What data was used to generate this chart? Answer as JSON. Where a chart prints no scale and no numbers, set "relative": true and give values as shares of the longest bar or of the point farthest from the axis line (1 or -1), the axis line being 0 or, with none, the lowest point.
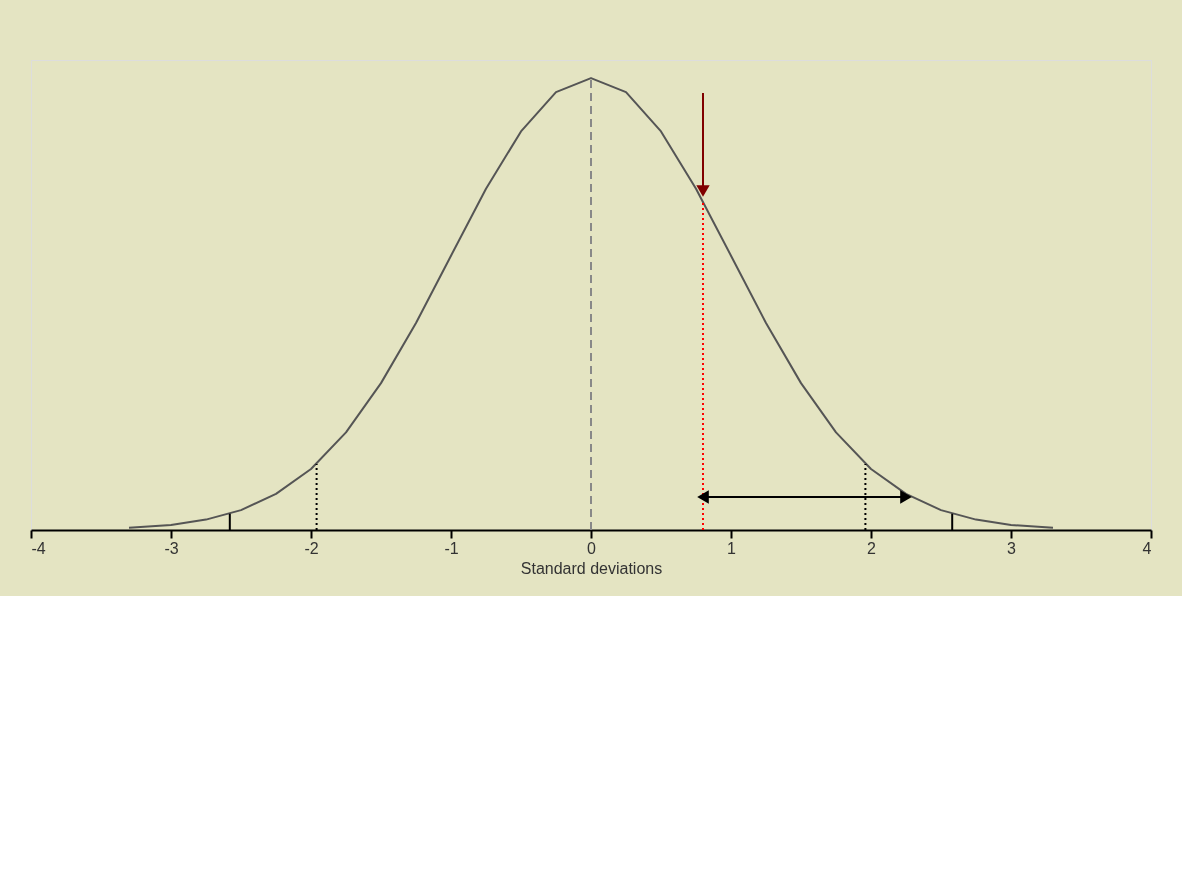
{
  "chart_data": {
    "type": "line",
    "relative": true,
    "xlabel": "Standard deviations",
    "xlim": [
      -4,
      4
    ],
    "xticks": [
      -4,
      -3,
      -2,
      -1,
      0,
      1,
      2,
      3,
      4
    ],
    "grid": false,
    "marker": "none",
    "series": [
      {
        "color": "#555555",
        "x": [
          -3.3,
          -3,
          -2.75,
          -2.5,
          -2.25,
          -2,
          -1.75,
          -1.5,
          -1.25,
          -1,
          -0.75,
          -0.5,
          -0.25,
          0,
          0.25,
          0.5,
          0.75,
          1,
          1.25,
          1.5,
          1.75,
          2,
          2.25,
          2.5,
          2.75,
          3,
          3.3
        ],
        "values": [
          0.005,
          0.011,
          0.023,
          0.044,
          0.08,
          0.135,
          0.216,
          0.325,
          0.458,
          0.607,
          0.755,
          0.882,
          0.969,
          1,
          0.969,
          0.882,
          0.755,
          0.607,
          0.458,
          0.325,
          0.216,
          0.135,
          0.08,
          0.044,
          0.023,
          0.011,
          0.005
        ]
      },
      {
        "type": "line",
        "color": "#888888",
        "line_style": "dashed",
        "x": [
          0,
          0
        ],
        "values": [
          0,
          1
        ]
      },
      {
        "type": "line",
        "color": "#000000",
        "line_style": "dotted",
        "x": [
          -1.96,
          -1.96
        ],
        "values": [
          0,
          0.146
        ]
      },
      {
        "type": "line",
        "color": "#000000",
        "line_style": "dotted",
        "x": [
          1.96,
          1.96
        ],
        "values": [
          0,
          0.146
        ]
      },
      {
        "type": "line",
        "color": "#000000",
        "line_style": "solid",
        "x": [
          -2.58,
          -2.58
        ],
        "values": [
          0,
          0.036
        ]
      },
      {
        "type": "line",
        "color": "#000000",
        "line_style": "solid",
        "x": [
          2.58,
          2.58
        ],
        "values": [
          0,
          0.036
        ]
      },
      {
        "type": "line",
        "color": "#ff0000",
        "line_style": "dotted",
        "x": [
          0.8,
          0.8
        ],
        "values": [
          0,
          0.726
        ]
      },
      {
        "type": "line",
        "color": "#800000",
        "marker": "triangle",
        "x": [
          0.8,
          0.8
        ],
        "values": [
          0.967,
          0.75
        ]
      },
      {
        "type": "line",
        "color": "#000000",
        "marker": "triangle",
        "x": [
          0.8,
          1.5,
          2.25
        ],
        "values": [
          0.073,
          0.073,
          0.073
        ]
      }
    ]
  }
}
